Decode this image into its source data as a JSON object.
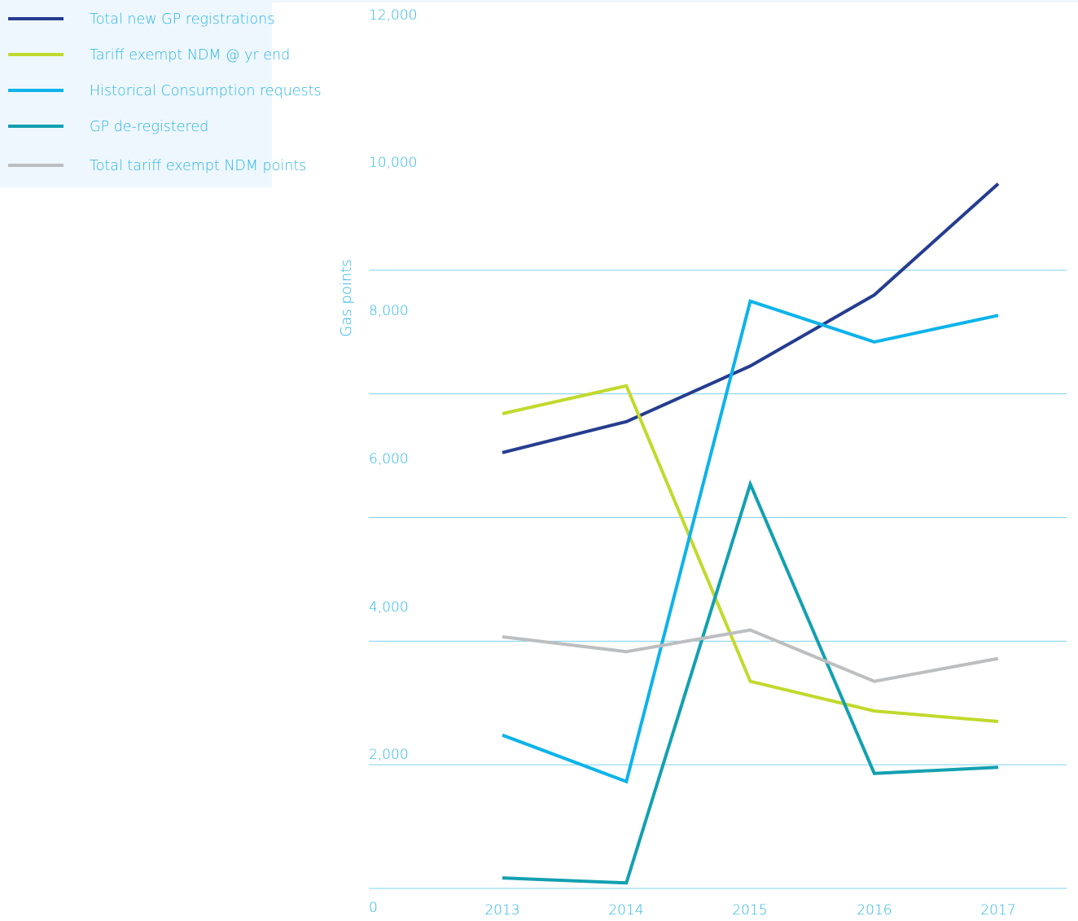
{
  "chart_data": {
    "type": "line",
    "x": [
      "2013",
      "2014",
      "2015",
      "2016",
      "2017"
    ],
    "ylabel": "Gas points",
    "ylim": [
      0,
      12000
    ],
    "yticks": [
      "0",
      "2,000",
      "4,000",
      "6,000",
      "8,000",
      "10,000",
      "12,000"
    ],
    "grid": true,
    "legend_position": "top-left",
    "series": [
      {
        "name": "Total new GP registrations",
        "color": "#253d8f",
        "values": [
          7050,
          7550,
          8450,
          9600,
          11400
        ]
      },
      {
        "name": "Tariff exempt NDM @ yr end",
        "color": "#c2d92d",
        "values": [
          7680,
          8130,
          3350,
          2870,
          2700
        ]
      },
      {
        "name": "Historical Consumption requests",
        "color": "#0db3ea",
        "values": [
          2480,
          1730,
          9500,
          8840,
          9270
        ]
      },
      {
        "name": "GP de-registered",
        "color": "#13a0b0",
        "values": [
          170,
          90,
          6540,
          1860,
          1960
        ]
      },
      {
        "name": "Total tariff exempt NDM points",
        "color": "#bcbec0",
        "values": [
          4070,
          3830,
          4180,
          3350,
          3720
        ]
      }
    ]
  }
}
